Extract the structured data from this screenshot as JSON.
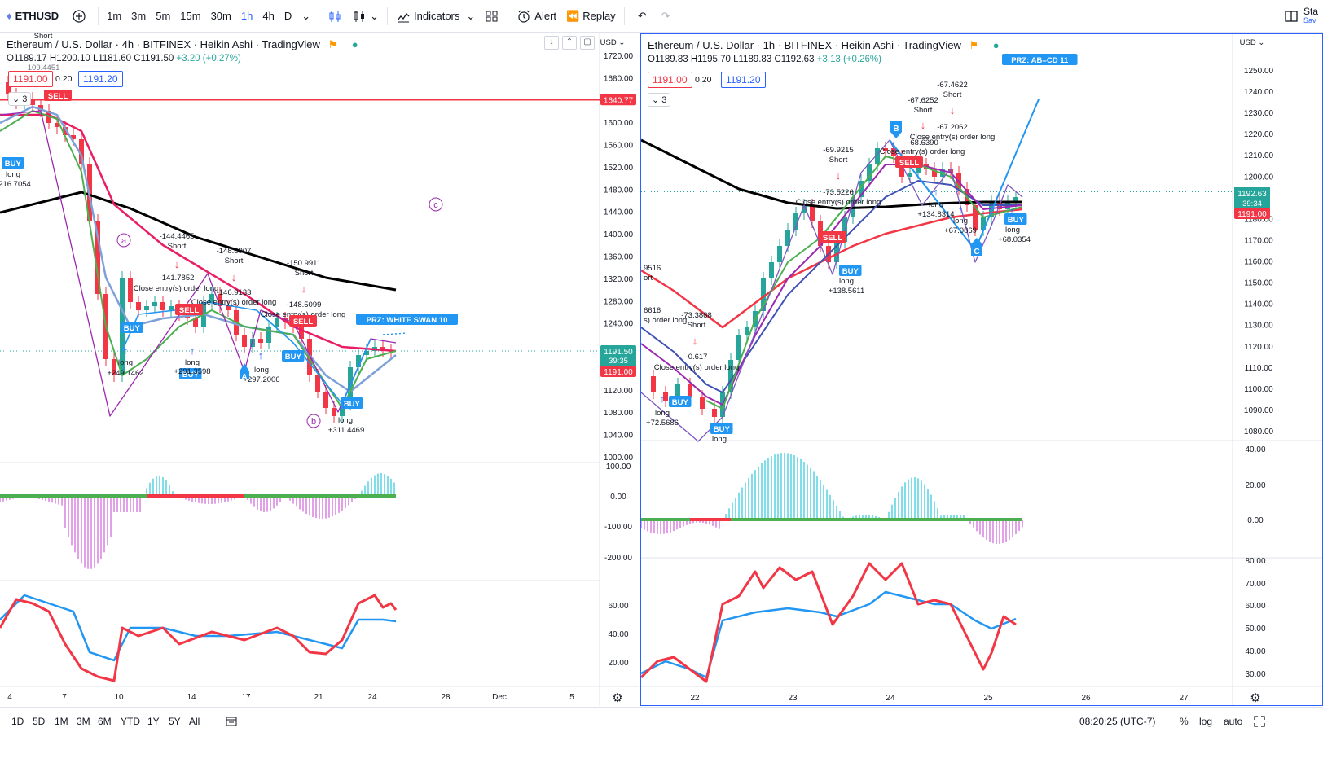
{
  "toolbar": {
    "symbol": "ETHUSD",
    "intervals": [
      "1m",
      "3m",
      "5m",
      "15m",
      "30m",
      "1h",
      "4h",
      "D"
    ],
    "active_interval": "1h",
    "indicators_label": "Indicators",
    "alert_label": "Alert",
    "replay_label": "Replay",
    "right_label": "Sta",
    "right_sublabel": "Sav"
  },
  "left_chart": {
    "title": "Ethereum / U.S. Dollar · 4h · BITFINEX · Heikin Ashi · TradingView",
    "ohlc": {
      "o": "O1189.17",
      "h": "H1200.10",
      "l": "L1181.60",
      "c": "C1191.50",
      "change": "+3.20 (+0.27%)"
    },
    "sell_price": "1191.00",
    "spread": "0.20",
    "buy_price": "1191.20",
    "collapse_count": "3",
    "currency": "USD",
    "price_axis": [
      "1720.00",
      "1680.00",
      "1640.77",
      "1600.00",
      "1560.00",
      "1520.00",
      "1480.00",
      "1440.00",
      "1400.00",
      "1360.00",
      "1320.00",
      "1280.00",
      "1240.00",
      "1191.50",
      "1191.00",
      "1120.00",
      "1080.00",
      "1040.00",
      "1000.00"
    ],
    "price_tag_red": "1640.77",
    "price_tag_last": "1191.50",
    "price_tag_countdown": "39:35",
    "price_tag_bid": "1191.00",
    "macd_axis": [
      "100.00",
      "0.00",
      "-100.00",
      "-200.00"
    ],
    "rsi_axis": [
      "60.00",
      "40.00",
      "20.00"
    ],
    "time_axis": [
      "4",
      "7",
      "10",
      "14",
      "17",
      "21",
      "24",
      "28",
      "Dec",
      "5"
    ],
    "annotations": {
      "prz": "PRZ: WHITE SWAN 10",
      "wave_a": "a",
      "wave_b": "b",
      "wave_c": "c",
      "pt_A": "A",
      "s1_val": "-144.4465",
      "s1_lbl": "Short",
      "s2_val": "-148.6907",
      "s2_lbl": "Short",
      "s3_val": "-150.9911",
      "s3_lbl": "Short",
      "c1_val": "-141.7852",
      "c1_lbl": "Close entry(s) order long",
      "c2_val": "-146.9133",
      "c2_lbl": "Close entry(s) order long",
      "c3_val": "-148.5099",
      "c3_lbl": "Close entry(s) order long",
      "l1_lbl": "long",
      "l1_val": "+249.1462",
      "l2_lbl": "long",
      "l2_val": "+291.3598",
      "l3_lbl": "long",
      "l3_val": "+297.2006",
      "l4_lbl": "long",
      "l4_val": "+311.4469",
      "l0_lbl": "long",
      "l0_val": "216.7054",
      "top_short": "Short",
      "top_val": "-109.4451",
      "buy": "BUY",
      "sell": "SELL"
    }
  },
  "right_chart": {
    "title": "Ethereum / U.S. Dollar · 1h · BITFINEX · Heikin Ashi · TradingView",
    "ohlc": {
      "o": "O1189.83",
      "h": "H1195.70",
      "l": "L1189.83",
      "c": "C1192.63",
      "change": "+3.13 (+0.26%)"
    },
    "sell_price": "1191.00",
    "spread": "0.20",
    "buy_price": "1191.20",
    "collapse_count": "3",
    "currency": "USD",
    "price_axis": [
      "1250.00",
      "1240.00",
      "1230.00",
      "1220.00",
      "1210.00",
      "1200.00",
      "1192.63",
      "1191.00",
      "1180.00",
      "1170.00",
      "1160.00",
      "1150.00",
      "1140.00",
      "1130.00",
      "1120.00",
      "1110.00",
      "1100.00",
      "1090.00",
      "1080.00"
    ],
    "price_tag_last": "1192.63",
    "price_tag_countdown": "39:34",
    "price_tag_bid": "1191.00",
    "macd_axis": [
      "40.00",
      "20.00",
      "0.00"
    ],
    "rsi_axis": [
      "80.00",
      "70.00",
      "60.00",
      "50.00",
      "40.00",
      "30.00"
    ],
    "time_axis": [
      "22",
      "23",
      "24",
      "25",
      "26",
      "27"
    ],
    "annotations": {
      "prz": "PRZ: AB=CD 11",
      "pt_B": "B",
      "pt_C": "C",
      "s1_val": "-67.4622",
      "s1_lbl": "Short",
      "s2_val": "-67.6252",
      "s2_lbl": "Short",
      "s3_val": "-69.9215",
      "s3_lbl": "Short",
      "s4_val": "-73.3868",
      "s4_lbl": "Short",
      "c1_val": "-67.2062",
      "c1_lbl": "Close entry(s) order long",
      "c2_val": "-68.6390",
      "c2_lbl": "Close entry(s) order long",
      "c3_val": "-73.5226",
      "c3_lbl": "Close entry(s) order long",
      "c4_val": "-0.617",
      "c4_lbl": "Close entry(s) order long",
      "l1_lbl": "long",
      "l1_val": "+134.8314",
      "l2_lbl": "long",
      "l2_val": "+67.0869",
      "l3_lbl": "long",
      "l3_val": "+68.0354",
      "l4_lbl": "long",
      "l4_val": "+138.5611",
      "l5_lbl": "long",
      "l5_val": "+72.5686",
      "l6_lbl": "long",
      "edge1": "9516",
      "edge2": "ort",
      "edge3": "6616",
      "edge4": "s) order long",
      "buy": "BUY",
      "sell": "SELL"
    }
  },
  "bottombar": {
    "ranges": [
      "1D",
      "5D",
      "1M",
      "3M",
      "6M",
      "YTD",
      "1Y",
      "5Y",
      "All"
    ],
    "clock": "08:20:25 (UTC-7)",
    "percent": "%",
    "log": "log",
    "auto": "auto"
  },
  "colors": {
    "red": "#f23645",
    "blue": "#2962ff",
    "green": "#26a69a",
    "accent": "#2196f3"
  }
}
